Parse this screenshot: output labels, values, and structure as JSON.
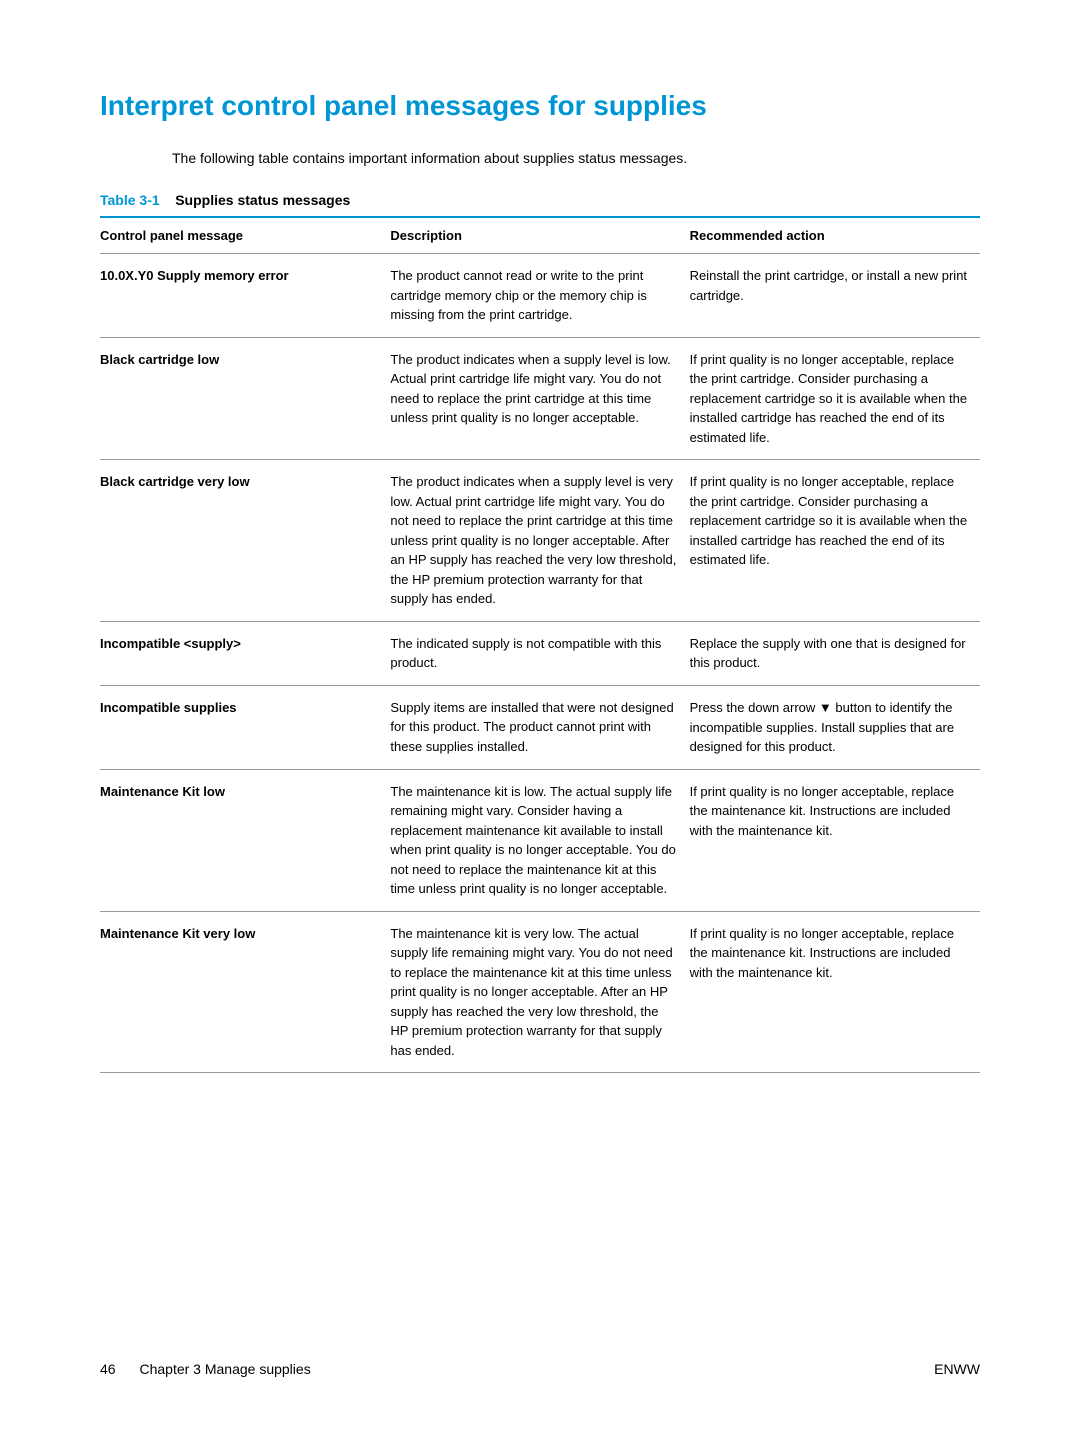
{
  "page": {
    "title": "Interpret control panel messages for supplies",
    "intro": "The following table contains important information about supplies status messages.",
    "table": {
      "caption_label": "Table 3-1",
      "caption_title": "Supplies status messages",
      "headers": {
        "col1": "Control panel message",
        "col2": "Description",
        "col3": "Recommended action"
      },
      "rows": [
        {
          "message": "10.0X.Y0 Supply memory error",
          "description": "The product cannot read or write to the print cartridge memory chip or the memory chip is missing from the print cartridge.",
          "action": "Reinstall the print cartridge, or install a new print cartridge."
        },
        {
          "message": "Black cartridge low",
          "description": "The product indicates when a supply level is low. Actual print cartridge life might vary. You do not need to replace the print cartridge at this time unless print quality is no longer acceptable.",
          "action": "If print quality is no longer acceptable, replace the print cartridge. Consider purchasing a replacement cartridge so it is available when the installed cartridge has reached the end of its estimated life."
        },
        {
          "message": "Black cartridge very low",
          "description": "The product indicates when a supply level is very low. Actual print cartridge life might vary. You do not need to replace the print cartridge at this time unless print quality is no longer acceptable. After an HP supply has reached the very low threshold, the HP premium protection warranty for that supply has ended.",
          "action": "If print quality is no longer acceptable, replace the print cartridge. Consider purchasing a replacement cartridge so it is available when the installed cartridge has reached the end of its estimated life."
        },
        {
          "message": "Incompatible <supply>",
          "description": "The indicated supply is not compatible with this product.",
          "action": "Replace the supply with one that is designed for this product."
        },
        {
          "message": "Incompatible supplies",
          "description": "Supply items are installed that were not designed for this product. The product cannot print with these supplies installed.",
          "action_pre": "Press the down arrow ",
          "action_post": " button to identify the incompatible supplies. Install supplies that are designed for this product."
        },
        {
          "message": "Maintenance Kit low",
          "description": "The maintenance kit is low. The actual supply life remaining might vary. Consider having a replacement maintenance kit available to install when print quality is no longer acceptable. You do not need to replace the maintenance kit at this time unless print quality is no longer acceptable.",
          "action": "If print quality is no longer acceptable, replace the maintenance kit. Instructions are included with the maintenance kit."
        },
        {
          "message": "Maintenance Kit very low",
          "description": "The maintenance kit is very low. The actual supply life remaining might vary. You do not need to replace the maintenance kit at this time unless print quality is no longer acceptable. After an HP supply has reached the very low threshold, the HP premium protection warranty for that supply has ended.",
          "action": "If print quality is no longer acceptable, replace the maintenance kit. Instructions are included with the maintenance kit."
        }
      ]
    },
    "footer": {
      "page_number": "46",
      "chapter": "Chapter 3   Manage supplies",
      "right": "ENWW"
    }
  },
  "colors": {
    "accent": "#0096d6",
    "text": "#000000",
    "border": "#999999",
    "background": "#ffffff"
  }
}
